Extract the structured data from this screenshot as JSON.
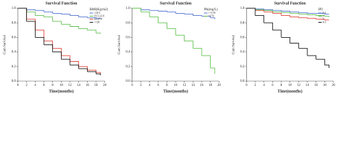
{
  "chart_data": [
    {
      "type": "line",
      "step": true,
      "title": "Survival Function",
      "x_label": "Time(months)",
      "y_label": "Cum Survival",
      "legend_title": "BMI(Kg/m2)",
      "legend": "upper right",
      "x": [
        0,
        2,
        4,
        6,
        8,
        10,
        12,
        14,
        16,
        18,
        19
      ],
      "series": [
        {
          "name": "<18.5",
          "color": "#4a6fd0",
          "values": [
            1,
            0.98,
            0.97,
            0.95,
            0.93,
            0.92,
            0.9,
            0.88,
            0.87,
            0.86,
            0.85
          ]
        },
        {
          "name": "18.5-23.9",
          "color": "#5cbf4a",
          "values": [
            1,
            0.95,
            0.9,
            0.88,
            0.82,
            0.78,
            0.75,
            0.72,
            0.7,
            0.66,
            0.65
          ]
        },
        {
          "name": "24-27.9",
          "color": "#e03c31",
          "values": [
            1,
            0.85,
            0.7,
            0.55,
            0.45,
            0.35,
            0.27,
            0.2,
            0.15,
            0.12,
            0.1
          ]
        },
        {
          "name": ">=28",
          "color": "#111111",
          "values": [
            1,
            0.82,
            0.6,
            0.5,
            0.4,
            0.3,
            0.22,
            0.17,
            0.13,
            0.1,
            0.08
          ]
        }
      ],
      "xlim": [
        0,
        20
      ],
      "xticks": [
        0,
        2,
        4,
        6,
        8,
        10,
        12,
        14,
        16,
        18,
        20
      ],
      "ylim": [
        0,
        1
      ],
      "yticks": [
        {
          "value": 0,
          "label": "0.0"
        },
        0.2,
        0.4,
        0.6,
        0.8,
        {
          "value": 1,
          "label": "1.0"
        }
      ]
    },
    {
      "type": "line",
      "step": true,
      "title": "Survival Function",
      "x_label": "Time(months)",
      "y_label": "Cum Survival",
      "legend_title": "PA(mg/L)",
      "legend": "upper right",
      "x": [
        0,
        2,
        4,
        6,
        8,
        10,
        12,
        14,
        16,
        18,
        19
      ],
      "series": [
        {
          "name": "<=170",
          "color": "#4a6fd0",
          "values": [
            1,
            0.98,
            0.97,
            0.96,
            0.95,
            0.93,
            0.92,
            0.9,
            0.89,
            0.87,
            0.85
          ]
        },
        {
          "name": ">170",
          "color": "#5cbf4a",
          "values": [
            1,
            0.95,
            0.88,
            0.8,
            0.72,
            0.63,
            0.55,
            0.45,
            0.35,
            0.18,
            0.1
          ]
        }
      ],
      "xlim": [
        0,
        20
      ],
      "xticks": [
        0,
        2,
        4,
        6,
        8,
        10,
        12,
        14,
        16,
        18,
        20
      ],
      "ylim": [
        0,
        1
      ],
      "yticks": [
        {
          "value": 0,
          "label": "0.0"
        },
        0.2,
        0.4,
        0.6,
        0.8,
        {
          "value": 1,
          "label": "1.0"
        }
      ]
    },
    {
      "type": "line",
      "step": true,
      "title": "Survival Function",
      "x_label": "Time(months)",
      "y_label": "Cum Survival",
      "legend_title": "IPI",
      "legend": "upper right",
      "x": [
        0,
        2,
        4,
        6,
        8,
        10,
        12,
        14,
        16,
        18,
        19
      ],
      "series": [
        {
          "name": "0-1",
          "color": "#4a6fd0",
          "values": [
            1,
            0.99,
            0.98,
            0.97,
            0.96,
            0.95,
            0.94,
            0.93,
            0.93,
            0.92,
            0.92
          ]
        },
        {
          "name": "2",
          "color": "#5cbf4a",
          "values": [
            1,
            0.98,
            0.97,
            0.95,
            0.94,
            0.93,
            0.92,
            0.91,
            0.9,
            0.89,
            0.88
          ]
        },
        {
          "name": "3",
          "color": "#e03c31",
          "values": [
            1,
            0.97,
            0.95,
            0.93,
            0.9,
            0.88,
            0.87,
            0.86,
            0.85,
            0.84,
            0.84
          ]
        },
        {
          "name": "4-5",
          "color": "#111111",
          "values": [
            1,
            0.9,
            0.8,
            0.7,
            0.6,
            0.52,
            0.45,
            0.35,
            0.3,
            0.22,
            0.18
          ]
        }
      ],
      "xlim": [
        0,
        20
      ],
      "xticks": [
        0,
        2,
        4,
        6,
        8,
        10,
        12,
        14,
        16,
        18,
        20
      ],
      "ylim": [
        0,
        1
      ],
      "yticks": [
        {
          "value": 0,
          "label": "0.0"
        },
        0.2,
        0.4,
        0.6,
        0.8,
        {
          "value": 1,
          "label": "1.0"
        }
      ]
    }
  ]
}
